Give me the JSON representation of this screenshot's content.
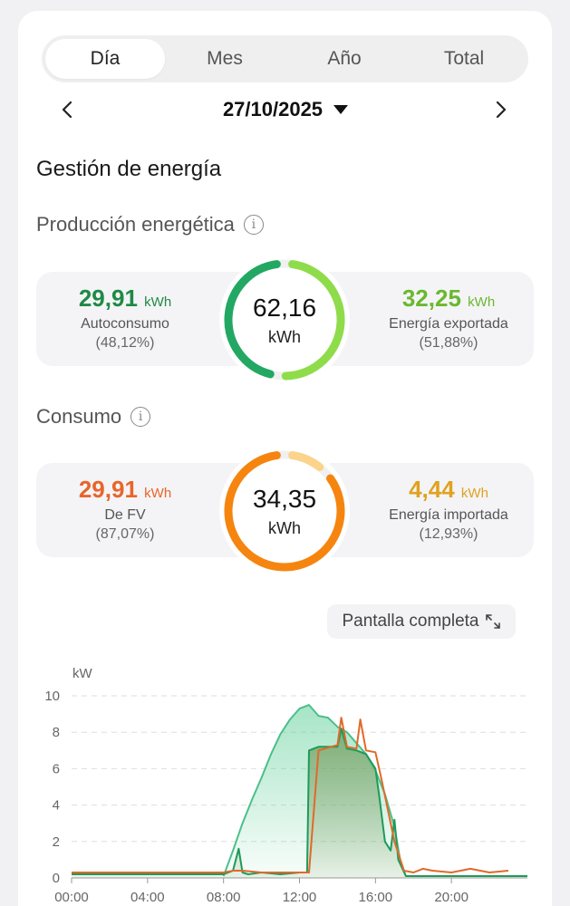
{
  "tabs": [
    {
      "label": "Día",
      "active": true
    },
    {
      "label": "Mes",
      "active": false
    },
    {
      "label": "Año",
      "active": false
    },
    {
      "label": "Total",
      "active": false
    }
  ],
  "date": {
    "value": "27/10/2025"
  },
  "energy_management": {
    "title": "Gestión de energía"
  },
  "production": {
    "title": "Producción energética",
    "total_value": "62,16",
    "total_unit": "kWh",
    "left": {
      "value": "29,91",
      "unit": "kWh",
      "label": "Autoconsumo",
      "pct": "(48,12%)",
      "color": "#1f8a45"
    },
    "right": {
      "value": "32,25",
      "unit": "kWh",
      "label": "Energía exportada",
      "pct": "(51,88%)",
      "color": "#6ab82e"
    },
    "ring_fraction_left": 0.4812
  },
  "consumption": {
    "title": "Consumo",
    "total_value": "34,35",
    "total_unit": "kWh",
    "left": {
      "value": "29,91",
      "unit": "kWh",
      "label": "De FV",
      "pct": "(87,07%)",
      "color": "#e8652a"
    },
    "right": {
      "value": "4,44",
      "unit": "kWh",
      "label": "Energía importada",
      "pct": "(12,93%)",
      "color": "#e0a21f"
    },
    "ring_fraction_left": 0.8707
  },
  "fullscreen": {
    "label": "Pantalla completa"
  },
  "chart_data": {
    "type": "area",
    "ylabel": "kW",
    "ylim": [
      0,
      10
    ],
    "yticks": [
      "0",
      "2",
      "4",
      "6",
      "8",
      "10"
    ],
    "xlim": [
      0,
      24
    ],
    "xticks": [
      "00:00",
      "04:00",
      "08:00",
      "12:00",
      "16:00",
      "20:00"
    ],
    "grid": true,
    "series": [
      {
        "color": "#4cbf8a",
        "x": [
          8.0,
          8.5,
          9.0,
          9.5,
          10.0,
          10.5,
          11.0,
          11.5,
          12.0,
          12.5,
          13.0,
          13.5,
          14.0,
          14.5,
          15.0,
          15.5,
          16.0,
          16.5,
          17.0,
          17.3,
          17.6
        ],
        "y": [
          0.1,
          1.5,
          3.0,
          4.3,
          5.5,
          6.8,
          7.9,
          8.7,
          9.3,
          9.5,
          8.9,
          8.8,
          8.3,
          8.0,
          7.4,
          6.8,
          5.9,
          4.6,
          2.8,
          1.0,
          0.1
        ]
      },
      {
        "color": "#1f9a5a",
        "x": [
          0,
          8.0,
          8.5,
          8.8,
          9.0,
          9.3,
          10.0,
          11.0,
          12.0,
          12.4,
          12.5,
          13.0,
          14.0,
          14.2,
          14.5,
          15.0,
          15.5,
          16.0,
          16.2,
          16.5,
          16.8,
          17.0,
          17.2,
          17.6,
          24.0
        ],
        "y": [
          0.2,
          0.2,
          0.4,
          1.6,
          0.3,
          0.2,
          0.3,
          0.2,
          0.3,
          0.3,
          7.0,
          7.2,
          7.2,
          8.2,
          7.1,
          7.0,
          6.8,
          6.0,
          4.5,
          2.0,
          1.5,
          3.2,
          1.0,
          0.1,
          0.1
        ]
      },
      {
        "color": "#e0692b",
        "x": [
          0,
          8.0,
          8.5,
          9.0,
          10.0,
          11.0,
          12.0,
          12.5,
          13.0,
          14.0,
          14.2,
          14.5,
          15.0,
          15.2,
          15.5,
          16.0,
          16.3,
          16.6,
          17.0,
          17.5,
          18.0,
          18.5,
          19.0,
          20.0,
          21.0,
          22.0,
          23.0
        ],
        "y": [
          0.3,
          0.3,
          0.4,
          0.4,
          0.3,
          0.3,
          0.3,
          0.3,
          7.0,
          7.3,
          8.8,
          7.2,
          7.1,
          8.7,
          7.0,
          6.9,
          5.5,
          4.0,
          2.0,
          0.4,
          0.3,
          0.5,
          0.4,
          0.3,
          0.5,
          0.3,
          0.4
        ]
      }
    ]
  }
}
